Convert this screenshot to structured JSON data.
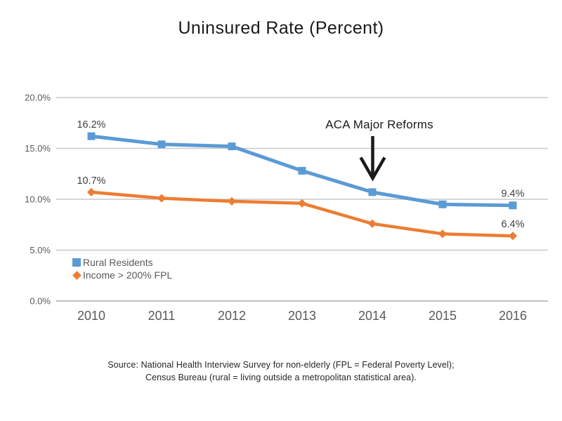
{
  "chart_data": {
    "type": "line",
    "title": "Uninsured Rate (Percent)",
    "categories": [
      "2010",
      "2011",
      "2012",
      "2013",
      "2014",
      "2015",
      "2016"
    ],
    "xlabel": "",
    "ylabel": "",
    "ylim": [
      0,
      20
    ],
    "grid": "horizontal",
    "legend_position": "inside-bottom-left",
    "y_axis": {
      "ticks": [
        {
          "value": 0,
          "label": "0.0%"
        },
        {
          "value": 5,
          "label": "5.0%"
        },
        {
          "value": 10,
          "label": "10.0%"
        },
        {
          "value": 15,
          "label": "15.0%"
        },
        {
          "value": 20,
          "label": "20.0%"
        }
      ]
    },
    "series": [
      {
        "name": "Rural Residents",
        "color": "#5B9BD5",
        "marker": "square",
        "values": [
          16.2,
          15.4,
          15.2,
          12.8,
          10.7,
          9.5,
          9.4
        ],
        "point_labels": [
          {
            "index": 0,
            "text": "16.2%"
          },
          {
            "index": 6,
            "text": "9.4%"
          }
        ]
      },
      {
        "name": "Income > 200% FPL",
        "color": "#ED7D31",
        "marker": "diamond",
        "values": [
          10.7,
          10.1,
          9.8,
          9.6,
          7.6,
          6.6,
          6.4
        ],
        "point_labels": [
          {
            "index": 0,
            "text": "10.7%"
          },
          {
            "index": 6,
            "text": "6.4%"
          }
        ]
      }
    ],
    "annotation": {
      "text": "ACA Major Reforms",
      "points_to_category": "2014",
      "points_to_series": "Rural Residents"
    }
  },
  "source": {
    "line1": "Source: National Health Interview Survey for non-elderly (FPL = Federal Poverty Level);",
    "line2": "Census Bureau (rural = living outside a metropolitan statistical area)."
  },
  "colors": {
    "blue_series": "#5B9BD5",
    "orange_series": "#ED7D31",
    "gridline": "#C9C9C9",
    "axis_line": "#BFBFBF",
    "axis_text": "#595959",
    "data_label": "#404040",
    "annotation": "#1A1A1A"
  }
}
